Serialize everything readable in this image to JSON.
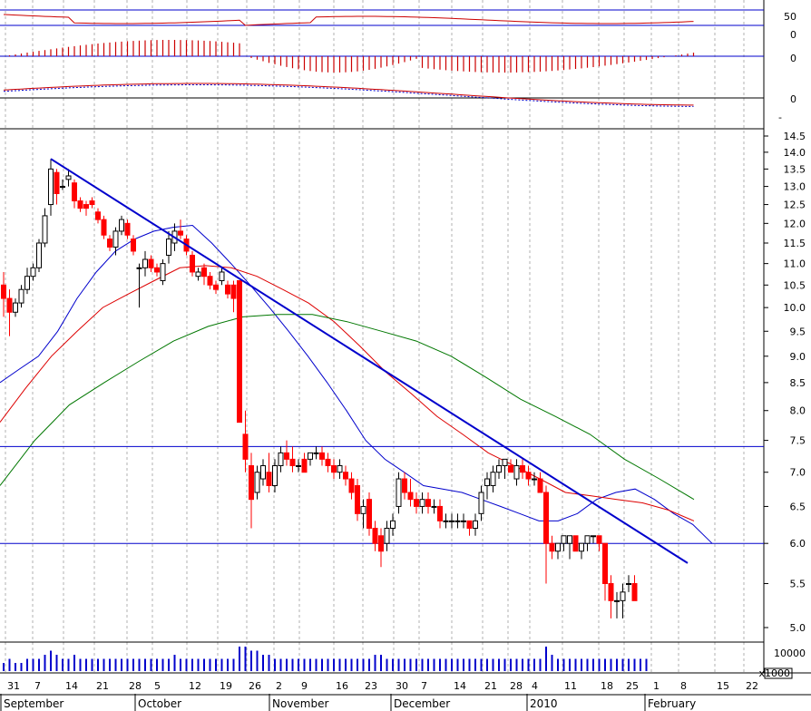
{
  "chart_data": {
    "type": "candlestick",
    "colors": {
      "up_candle": "#ffffff",
      "down_candle": "#ff0000",
      "wick": "#000000",
      "trendline": "#0000cc",
      "support_line": "#0000cc",
      "ma_short": "#0000cc",
      "ma_mid": "#dd0000",
      "ma_long": "#007700",
      "volume": "#0000cc",
      "oscillator": "#cc0000",
      "macd_signal": "#0000cc",
      "histogram": "#cc0000",
      "grid": "#b0b0b0"
    },
    "price_axis": {
      "ticks": [
        "14.5",
        "14.0",
        "13.5",
        "13.0",
        "12.5",
        "12.0",
        "11.5",
        "11.0",
        "10.5",
        "10.0",
        "9.5",
        "9.0",
        "8.5",
        "8.0",
        "7.5",
        "7.0",
        "6.5",
        "6.0",
        "5.5",
        "5.0"
      ],
      "scale": "log"
    },
    "x_axis": {
      "day_ticks": [
        "31",
        "7",
        "14",
        "21",
        "28",
        "5",
        "12",
        "19",
        "26",
        "2",
        "9",
        "16",
        "23",
        "30",
        "7",
        "14",
        "21",
        "28",
        "4",
        "11",
        "18",
        "25",
        "1",
        "8",
        "15",
        "22"
      ],
      "month_labels": [
        "September",
        "October",
        "November",
        "December",
        "2010",
        "February"
      ]
    },
    "volume_axis": {
      "tick": "10000",
      "multiplier": "x1000"
    },
    "indicator_ticks": {
      "oscillator": [
        "50",
        "0"
      ],
      "histogram": [
        "0"
      ],
      "macd": [
        "0",
        "-"
      ]
    },
    "horizontal_lines": [
      7.4,
      6.0
    ],
    "trendline": {
      "start": {
        "index": 8,
        "value": 13.8
      },
      "end": {
        "index": 116,
        "value": 5.75
      }
    },
    "candles": [
      [
        10.5,
        10.8,
        9.8,
        10.2
      ],
      [
        10.2,
        10.4,
        9.4,
        9.9
      ],
      [
        9.9,
        10.2,
        9.8,
        10.1
      ],
      [
        10.1,
        10.5,
        10.0,
        10.4
      ],
      [
        10.4,
        10.9,
        10.3,
        10.7
      ],
      [
        10.7,
        11.0,
        10.6,
        10.9
      ],
      [
        10.9,
        11.6,
        10.8,
        11.5
      ],
      [
        11.5,
        12.4,
        11.4,
        12.2
      ],
      [
        12.5,
        13.8,
        12.2,
        13.5
      ],
      [
        13.4,
        13.5,
        12.5,
        12.8
      ],
      [
        13.0,
        13.2,
        12.9,
        13.0
      ],
      [
        13.2,
        13.5,
        13.0,
        13.3
      ],
      [
        13.1,
        13.2,
        12.4,
        12.6
      ],
      [
        12.6,
        12.7,
        12.3,
        12.4
      ],
      [
        12.5,
        12.6,
        12.2,
        12.4
      ],
      [
        12.6,
        12.7,
        12.4,
        12.5
      ],
      [
        12.3,
        12.4,
        12.0,
        12.1
      ],
      [
        12.1,
        12.2,
        11.6,
        11.7
      ],
      [
        11.6,
        11.7,
        11.3,
        11.4
      ],
      [
        11.4,
        11.9,
        11.2,
        11.8
      ],
      [
        11.8,
        12.2,
        11.7,
        12.1
      ],
      [
        12.0,
        12.1,
        11.6,
        11.7
      ],
      [
        11.6,
        11.7,
        11.2,
        11.3
      ],
      [
        10.9,
        11.0,
        10.0,
        10.9
      ],
      [
        10.9,
        11.3,
        10.7,
        11.1
      ],
      [
        11.1,
        11.2,
        10.8,
        10.9
      ],
      [
        10.9,
        11.0,
        10.7,
        10.8
      ],
      [
        10.6,
        11.1,
        10.5,
        11.0
      ],
      [
        11.2,
        11.8,
        11.0,
        11.6
      ],
      [
        11.5,
        12.0,
        11.3,
        11.8
      ],
      [
        11.8,
        12.1,
        11.6,
        11.7
      ],
      [
        11.6,
        11.7,
        11.2,
        11.3
      ],
      [
        11.2,
        11.3,
        10.7,
        10.8
      ],
      [
        10.7,
        10.9,
        10.6,
        10.8
      ],
      [
        10.9,
        11.0,
        10.5,
        10.7
      ],
      [
        10.7,
        10.8,
        10.4,
        10.5
      ],
      [
        10.5,
        10.6,
        10.3,
        10.4
      ],
      [
        10.6,
        10.9,
        10.5,
        10.8
      ],
      [
        10.5,
        10.6,
        10.2,
        10.3
      ],
      [
        10.5,
        10.6,
        9.9,
        10.2
      ],
      [
        10.6,
        10.6,
        7.8,
        7.8
      ],
      [
        7.6,
        8.0,
        7.0,
        7.2
      ],
      [
        7.1,
        7.3,
        6.2,
        6.6
      ],
      [
        6.7,
        7.1,
        6.6,
        7.0
      ],
      [
        6.9,
        7.2,
        6.8,
        7.1
      ],
      [
        7.0,
        7.3,
        6.7,
        6.8
      ],
      [
        6.8,
        7.2,
        6.7,
        7.1
      ],
      [
        7.1,
        7.4,
        7.0,
        7.3
      ],
      [
        7.3,
        7.5,
        7.1,
        7.2
      ],
      [
        7.2,
        7.4,
        7.0,
        7.1
      ],
      [
        7.1,
        7.2,
        7.0,
        7.1
      ],
      [
        7.2,
        7.3,
        7.0,
        7.0
      ],
      [
        7.2,
        7.3,
        7.1,
        7.3
      ],
      [
        7.3,
        7.4,
        7.2,
        7.3
      ],
      [
        7.3,
        7.4,
        7.1,
        7.2
      ],
      [
        7.2,
        7.3,
        7.0,
        7.1
      ],
      [
        7.1,
        7.2,
        6.9,
        7.0
      ],
      [
        7.0,
        7.2,
        6.9,
        7.1
      ],
      [
        7.0,
        7.1,
        6.8,
        6.9
      ],
      [
        6.9,
        7.0,
        6.6,
        6.7
      ],
      [
        6.8,
        6.9,
        6.3,
        6.4
      ],
      [
        6.4,
        6.6,
        6.2,
        6.5
      ],
      [
        6.6,
        6.7,
        6.1,
        6.2
      ],
      [
        6.2,
        6.3,
        5.9,
        6.0
      ],
      [
        6.1,
        6.2,
        5.7,
        5.9
      ],
      [
        6.0,
        6.3,
        5.9,
        6.2
      ],
      [
        6.2,
        6.4,
        6.1,
        6.3
      ],
      [
        6.5,
        7.0,
        6.4,
        6.9
      ],
      [
        6.9,
        7.0,
        6.6,
        6.7
      ],
      [
        6.7,
        6.9,
        6.5,
        6.6
      ],
      [
        6.6,
        6.7,
        6.4,
        6.5
      ],
      [
        6.5,
        6.7,
        6.4,
        6.6
      ],
      [
        6.6,
        6.7,
        6.4,
        6.5
      ],
      [
        6.5,
        6.6,
        6.4,
        6.5
      ],
      [
        6.5,
        6.6,
        6.2,
        6.3
      ],
      [
        6.3,
        6.4,
        6.2,
        6.3
      ],
      [
        6.3,
        6.4,
        6.2,
        6.3
      ],
      [
        6.3,
        6.4,
        6.2,
        6.3
      ],
      [
        6.3,
        6.4,
        6.2,
        6.3
      ],
      [
        6.3,
        6.3,
        6.1,
        6.2
      ],
      [
        6.2,
        6.4,
        6.1,
        6.3
      ],
      [
        6.4,
        6.8,
        6.3,
        6.7
      ],
      [
        6.8,
        7.0,
        6.6,
        6.9
      ],
      [
        6.8,
        7.1,
        6.7,
        7.0
      ],
      [
        7.0,
        7.2,
        6.9,
        7.1
      ],
      [
        7.1,
        7.2,
        6.9,
        7.2
      ],
      [
        7.1,
        7.2,
        7.0,
        7.0
      ],
      [
        6.9,
        7.2,
        6.8,
        7.1
      ],
      [
        7.1,
        7.2,
        6.9,
        7.0
      ],
      [
        7.0,
        7.1,
        6.8,
        6.9
      ],
      [
        6.9,
        7.0,
        6.8,
        6.9
      ],
      [
        6.9,
        7.0,
        6.7,
        6.7
      ],
      [
        6.7,
        6.8,
        5.5,
        6.0
      ],
      [
        6.0,
        6.1,
        5.8,
        5.9
      ],
      [
        5.9,
        6.0,
        5.8,
        6.0
      ],
      [
        6.0,
        6.1,
        5.9,
        6.1
      ],
      [
        6.0,
        6.1,
        5.8,
        6.1
      ],
      [
        6.1,
        6.1,
        5.9,
        5.9
      ],
      [
        5.9,
        6.0,
        5.8,
        6.0
      ],
      [
        6.0,
        6.1,
        5.9,
        6.1
      ],
      [
        6.1,
        6.1,
        6.0,
        6.1
      ],
      [
        6.1,
        6.1,
        5.9,
        6.0
      ],
      [
        6.0,
        6.0,
        5.3,
        5.5
      ],
      [
        5.5,
        5.6,
        5.1,
        5.3
      ],
      [
        5.3,
        5.4,
        5.1,
        5.3
      ],
      [
        5.3,
        5.5,
        5.1,
        5.4
      ],
      [
        5.5,
        5.6,
        5.4,
        5.5
      ],
      [
        5.5,
        5.6,
        5.3,
        5.3
      ]
    ],
    "ma_short_values": [
      8.5,
      8.75,
      9.0,
      9.5,
      10.2,
      10.8,
      11.3,
      11.6,
      11.8,
      11.9,
      11.95,
      11.5,
      11.0,
      10.5,
      10.0,
      9.5,
      9.0,
      8.5,
      8.0,
      7.5,
      7.2,
      7.0,
      6.8,
      6.75,
      6.7,
      6.6,
      6.5,
      6.4,
      6.3,
      6.3,
      6.4,
      6.6,
      6.7,
      6.75,
      6.6,
      6.4,
      6.25,
      6.0
    ],
    "ma_mid_values": [
      7.8,
      8.4,
      9.0,
      9.5,
      10.0,
      10.3,
      10.6,
      10.9,
      10.95,
      10.9,
      10.7,
      10.4,
      10.1,
      9.7,
      9.2,
      8.7,
      8.3,
      7.9,
      7.6,
      7.3,
      7.1,
      6.9,
      6.7,
      6.65,
      6.6,
      6.55,
      6.45,
      6.3
    ],
    "ma_long_values": [
      6.8,
      7.5,
      8.1,
      8.5,
      8.9,
      9.3,
      9.6,
      9.8,
      9.85,
      9.85,
      9.7,
      9.5,
      9.3,
      9.0,
      8.6,
      8.2,
      7.9,
      7.6,
      7.2,
      6.9,
      6.6
    ],
    "volume": [
      2,
      3,
      2,
      2,
      3,
      3,
      3,
      4,
      5,
      4,
      3,
      3,
      4,
      3,
      3,
      3,
      3,
      3,
      3,
      3,
      3,
      3,
      3,
      3,
      3,
      3,
      3,
      3,
      3,
      4,
      3,
      3,
      3,
      3,
      3,
      3,
      3,
      3,
      3,
      3,
      6,
      6,
      5,
      5,
      4,
      4,
      3,
      3,
      3,
      3,
      3,
      3,
      3,
      3,
      3,
      3,
      3,
      3,
      3,
      3,
      3,
      3,
      3,
      4,
      4,
      3,
      3,
      3,
      3,
      3,
      3,
      3,
      3,
      3,
      3,
      3,
      3,
      3,
      3,
      3,
      3,
      3,
      3,
      3,
      3,
      3,
      3,
      3,
      3,
      3,
      3,
      3,
      6,
      4,
      3,
      3,
      3,
      3,
      3,
      3,
      3,
      3,
      3,
      3,
      3,
      3,
      3,
      3,
      3,
      3
    ]
  }
}
